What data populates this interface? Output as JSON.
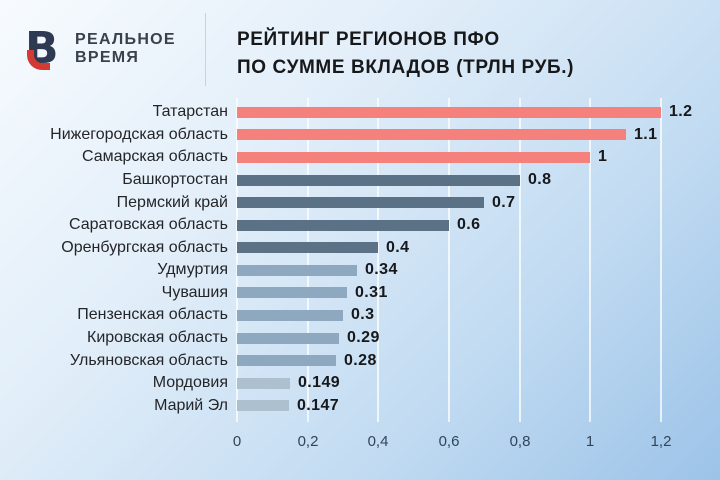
{
  "logo": {
    "mark_letter": "В",
    "line1": "РЕАЛЬНОЕ",
    "line2": "ВРЕМЯ",
    "navy": "#2d3a52",
    "red": "#d43a34"
  },
  "header": {
    "title_line1": "РЕЙТИНГ РЕГИОНОВ ПФО",
    "title_line2": "ПО СУММЕ ВКЛАДОВ (ТРЛН РУБ.)"
  },
  "chart_data": {
    "type": "bar",
    "orientation": "horizontal",
    "title": "РЕЙТИНГ РЕГИОНОВ ПФО ПО СУММЕ ВКЛАДОВ (ТРЛН РУБ.)",
    "unit": "трлн руб.",
    "xlim": [
      0,
      1.2
    ],
    "grid": true,
    "categories": [
      "Татарстан",
      "Нижегородская область",
      "Самарская область",
      "Башкортостан",
      "Пермский край",
      "Саратовская область",
      "Оренбургская область",
      "Удмуртия",
      "Чувашия",
      "Пензенская область",
      "Кировская область",
      "Ульяновская область",
      "Мордовия",
      "Марий Эл"
    ],
    "values": [
      1.2,
      1.1,
      1,
      0.8,
      0.7,
      0.6,
      0.4,
      0.34,
      0.31,
      0.3,
      0.29,
      0.28,
      0.149,
      0.147
    ],
    "value_labels": [
      "1.2",
      "1.1",
      "1",
      "0.8",
      "0.7",
      "0.6",
      "0.4",
      "0.34",
      "0.31",
      "0.3",
      "0.29",
      "0.28",
      "0.149",
      "0.147"
    ],
    "bar_colors": [
      "#f4817b",
      "#f4817b",
      "#f4817b",
      "#5b7186",
      "#5b7186",
      "#5b7186",
      "#5b7186",
      "#8ea8bf",
      "#8ea8bf",
      "#8ea8bf",
      "#8ea8bf",
      "#8ea8bf",
      "#acc0cf",
      "#acc0cf"
    ],
    "x_ticks": [
      {
        "value": 0,
        "label": "0"
      },
      {
        "value": 0.2,
        "label": "0,2"
      },
      {
        "value": 0.4,
        "label": "0,4"
      },
      {
        "value": 0.6,
        "label": "0,6"
      },
      {
        "value": 0.8,
        "label": "0,8"
      },
      {
        "value": 1,
        "label": "1"
      },
      {
        "value": 1.2,
        "label": "1,2"
      }
    ]
  }
}
